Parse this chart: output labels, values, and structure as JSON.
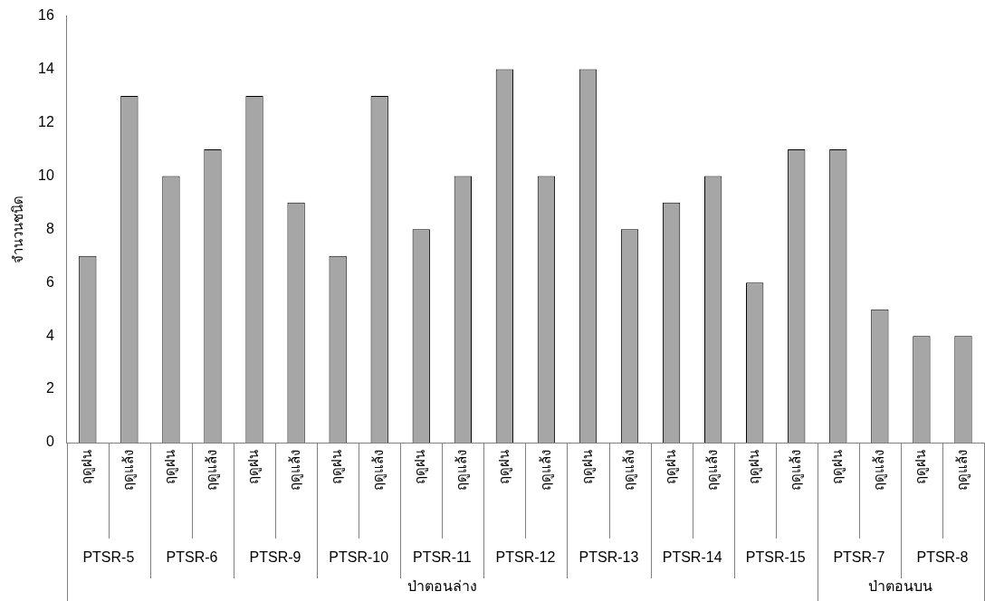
{
  "chart_data": {
    "type": "bar",
    "ylabel": "จำนวนชนิด",
    "categories": [
      "ฤดูฝน",
      "ฤดูแล้ง",
      "ฤดูฝน",
      "ฤดูแล้ง",
      "ฤดูฝน",
      "ฤดูแล้ง",
      "ฤดูฝน",
      "ฤดูแล้ง",
      "ฤดูฝน",
      "ฤดูแล้ง",
      "ฤดูฝน",
      "ฤดูแล้ง",
      "ฤดูฝน",
      "ฤดูแล้ง",
      "ฤดูฝน",
      "ฤดูแล้ง",
      "ฤดูฝน",
      "ฤดูแล้ง",
      "ฤดูฝน",
      "ฤดูแล้ง",
      "ฤดูฝน",
      "ฤดูแล้ง"
    ],
    "values": [
      7,
      13,
      10,
      11,
      13,
      9,
      7,
      13,
      8,
      10,
      14,
      10,
      14,
      8,
      9,
      10,
      6,
      11,
      11,
      5,
      4,
      4
    ],
    "color": "#a6a6a6",
    "ylim": [
      0,
      16
    ],
    "yticks": [
      0,
      2,
      4,
      6,
      8,
      10,
      12,
      14,
      16
    ],
    "grid": false,
    "legend": false,
    "annotations": [
      "PTSR-5",
      "PTSR-6",
      "PTSR-9",
      "PTSR-10",
      "PTSR-11",
      "PTSR-12",
      "PTSR-13",
      "PTSR-14",
      "PTSR-15",
      "PTSR-7",
      "PTSR-8",
      "ป่าตอนล่าง",
      "ป่าตอนบน"
    ]
  }
}
